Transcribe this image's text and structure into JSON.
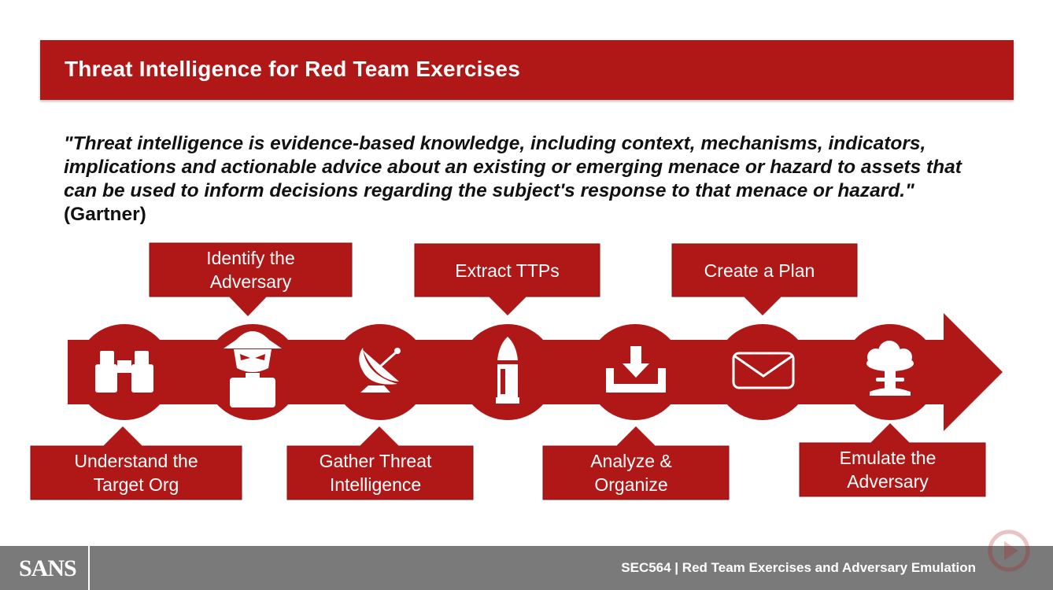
{
  "slide": {
    "title": "Threat Intelligence for Red Team Exercises",
    "quote": "\"Threat intelligence is evidence-based knowledge, including context, mechanisms, indicators, implications and actionable advice about an existing or emerging menace or hazard to assets that can be used to inform decisions regarding the subject's response to that menace or hazard.\"",
    "quote_attribution": "(Gartner)"
  },
  "steps": {
    "understand": {
      "line1": "Understand the",
      "line2": "Target Org",
      "icon": "binoculars-icon"
    },
    "identify": {
      "line1": "Identify the",
      "line2": "Adversary",
      "icon": "spy-icon"
    },
    "gather": {
      "line1": "Gather Threat",
      "line2": "Intelligence",
      "icon": "satellite-dish-icon"
    },
    "extract": {
      "line1": "Extract TTPs",
      "icon": "bullet-icon"
    },
    "analyze": {
      "line1": "Analyze &",
      "line2": "Organize",
      "icon": "download-tray-icon"
    },
    "plan": {
      "line1": "Create a Plan",
      "icon": "envelope-icon"
    },
    "emulate": {
      "line1": "Emulate the",
      "line2": "Adversary",
      "icon": "mushroom-cloud-icon"
    }
  },
  "footer": {
    "logo": "SANS",
    "course": "SEC564 | Red Team Exercises and Adversary Emulation"
  },
  "colors": {
    "accent": "#b01717",
    "footer": "#7a7a7a",
    "text": "#111111"
  }
}
